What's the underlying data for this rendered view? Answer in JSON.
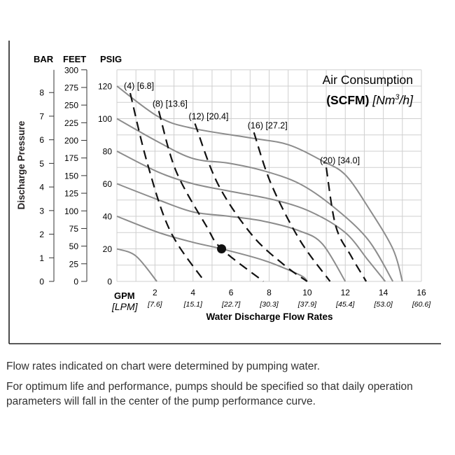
{
  "chart_data": {
    "type": "line",
    "xlabel": "Water Discharge Flow Rates",
    "x_unit_primary": "GPM",
    "x_unit_secondary": "[LPM]",
    "xlim": [
      0,
      16
    ],
    "x_ticks": [
      {
        "gpm": "2",
        "lpm": "[7.6]"
      },
      {
        "gpm": "4",
        "lpm": "[15.1]"
      },
      {
        "gpm": "6",
        "lpm": "[22.7]"
      },
      {
        "gpm": "8",
        "lpm": "[30.3]"
      },
      {
        "gpm": "10",
        "lpm": "[37.9]"
      },
      {
        "gpm": "12",
        "lpm": "[45.4]"
      },
      {
        "gpm": "14",
        "lpm": "[53.0]"
      },
      {
        "gpm": "16",
        "lpm": "[60.6]"
      }
    ],
    "ylabel": "Discharge Pressure",
    "ylim_psig": [
      0,
      130
    ],
    "y_axes": {
      "bar": {
        "title": "BAR",
        "ticks": [
          "0",
          "1",
          "2",
          "3",
          "4",
          "5",
          "6",
          "7",
          "8"
        ]
      },
      "feet": {
        "title": "FEET",
        "ticks": [
          "0",
          "25",
          "50",
          "75",
          "100",
          "125",
          "150",
          "175",
          "200",
          "225",
          "250",
          "275",
          "300"
        ]
      },
      "psig": {
        "title": "PSIG",
        "ticks": [
          "0",
          "20",
          "40",
          "60",
          "80",
          "100",
          "120"
        ]
      }
    },
    "grid": true,
    "legend_title": "Air Consumption",
    "legend_unit_bold": "(SCFM)",
    "legend_unit_italic": "[Nm",
    "legend_unit_sup": "3",
    "legend_unit_tail": "/h]",
    "pressure_curves": [
      {
        "points": [
          [
            0,
            120
          ],
          [
            2.2,
            101
          ],
          [
            4,
            94
          ],
          [
            7.1,
            88
          ],
          [
            9,
            84
          ],
          [
            10.8,
            74
          ],
          [
            12,
            65.5
          ],
          [
            13.2,
            45.6
          ],
          [
            14.5,
            20
          ],
          [
            15,
            0
          ]
        ]
      },
      {
        "points": [
          [
            0,
            100
          ],
          [
            2.2,
            85.5
          ],
          [
            4,
            75.5
          ],
          [
            5.9,
            72.6
          ],
          [
            7.7,
            68
          ],
          [
            9.6,
            60
          ],
          [
            11.4,
            45.6
          ],
          [
            13.2,
            25.6
          ],
          [
            14.5,
            0
          ]
        ]
      },
      {
        "points": [
          [
            0,
            80
          ],
          [
            2.2,
            67
          ],
          [
            4,
            60
          ],
          [
            5.9,
            55.5
          ],
          [
            8.3,
            50
          ],
          [
            10.2,
            42.7
          ],
          [
            12,
            30
          ],
          [
            13.2,
            13
          ],
          [
            14.1,
            0
          ]
        ]
      },
      {
        "points": [
          [
            0,
            60
          ],
          [
            2.2,
            50
          ],
          [
            4,
            42.7
          ],
          [
            5.9,
            40
          ],
          [
            7.7,
            37
          ],
          [
            9.6,
            31
          ],
          [
            10.8,
            23
          ],
          [
            12,
            0
          ]
        ]
      },
      {
        "points": [
          [
            0,
            40
          ],
          [
            2.2,
            30
          ],
          [
            4,
            24
          ],
          [
            5.5,
            20
          ],
          [
            7.7,
            13
          ],
          [
            9.6,
            4
          ],
          [
            10,
            0
          ]
        ]
      },
      {
        "points": [
          [
            0,
            20
          ],
          [
            1,
            15.6
          ],
          [
            2.1,
            0
          ]
        ]
      }
    ],
    "air_curves": [
      {
        "name": "(4) [6.8]",
        "points": [
          [
            0.7,
            115.7
          ],
          [
            1.6,
            72.6
          ],
          [
            2.8,
            31
          ],
          [
            4.6,
            0
          ]
        ]
      },
      {
        "name": "(8) [13.6]",
        "points": [
          [
            2.2,
            104.7
          ],
          [
            3.1,
            68
          ],
          [
            4.7,
            34
          ],
          [
            5.5,
            20
          ],
          [
            7.7,
            0
          ]
        ]
      },
      {
        "name": "(12) [20.4]",
        "points": [
          [
            4.1,
            97
          ],
          [
            5.3,
            60
          ],
          [
            7.1,
            28.5
          ],
          [
            8.8,
            10
          ],
          [
            10,
            0
          ]
        ]
      },
      {
        "name": "(16) [27.2]",
        "points": [
          [
            7.2,
            91.5
          ],
          [
            8.1,
            60
          ],
          [
            9.6,
            25.6
          ],
          [
            11.2,
            0
          ]
        ]
      },
      {
        "name": "(20) [34.0]",
        "points": [
          [
            11,
            70
          ],
          [
            11.5,
            34
          ],
          [
            12.3,
            15.7
          ],
          [
            13.1,
            0
          ]
        ]
      }
    ],
    "marker_point": [
      5.5,
      20
    ],
    "colors": {
      "pressure_curve": "#8c8c8c",
      "air_curve": "#111111",
      "grid": "#cfcfcf"
    }
  },
  "notes": [
    "Flow rates indicated on chart were determined by pumping water.",
    "For optimum life and performance, pumps should be specified so that daily operation parameters will fall in the center of the pump performance curve."
  ]
}
